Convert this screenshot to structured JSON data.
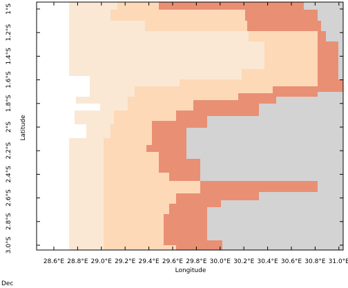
{
  "x_axis": {
    "label": "Longitude",
    "ticks": [
      {
        "value": 28.6,
        "label": "28.6°E"
      },
      {
        "value": 28.8,
        "label": "28.8°E"
      },
      {
        "value": 29.0,
        "label": "29.0°E"
      },
      {
        "value": 29.2,
        "label": "29.2°E"
      },
      {
        "value": 29.4,
        "label": "29.4°E"
      },
      {
        "value": 29.6,
        "label": "29.6°E"
      },
      {
        "value": 29.8,
        "label": "29.8°E"
      },
      {
        "value": 30.0,
        "label": "30.0°E"
      },
      {
        "value": 30.2,
        "label": "30.2°E"
      },
      {
        "value": 30.4,
        "label": "30.4°E"
      },
      {
        "value": 30.6,
        "label": "30.6°E"
      },
      {
        "value": 30.8,
        "label": "30.8°E"
      },
      {
        "value": 31.0,
        "label": "31.0°E"
      }
    ]
  },
  "y_axis": {
    "label": "Latitude",
    "ticks": [
      {
        "value": -1.0,
        "label": "1°S"
      },
      {
        "value": -1.2,
        "label": "1.2°S"
      },
      {
        "value": -1.4,
        "label": "1.4°S"
      },
      {
        "value": -1.6,
        "label": "1.6°S"
      },
      {
        "value": -1.8,
        "label": "1.8°S"
      },
      {
        "value": -2.0,
        "label": "2°S"
      },
      {
        "value": -2.2,
        "label": "2.2°S"
      },
      {
        "value": -2.4,
        "label": "2.4°S"
      },
      {
        "value": -2.6,
        "label": "2.6°S"
      },
      {
        "value": -2.8,
        "label": "2.8°S"
      },
      {
        "value": -3.0,
        "label": "3.0°S"
      }
    ]
  },
  "footer": "Dec"
}
